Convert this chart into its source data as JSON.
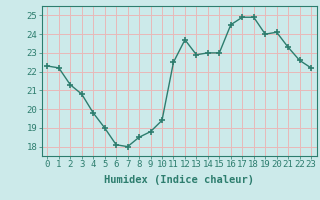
{
  "x": [
    0,
    1,
    2,
    3,
    4,
    5,
    6,
    7,
    8,
    9,
    10,
    11,
    12,
    13,
    14,
    15,
    16,
    17,
    18,
    19,
    20,
    21,
    22,
    23
  ],
  "y": [
    22.3,
    22.2,
    21.3,
    20.8,
    19.8,
    19.0,
    18.1,
    18.0,
    18.5,
    18.8,
    19.4,
    22.5,
    23.7,
    22.9,
    23.0,
    23.0,
    24.5,
    24.9,
    24.9,
    24.0,
    24.1,
    23.3,
    22.6,
    22.2
  ],
  "line_color": "#2d7d6e",
  "marker": "+",
  "marker_size": 5,
  "bg_color": "#cceaea",
  "grid_color": "#e8b8b8",
  "xlabel": "Humidex (Indice chaleur)",
  "ylim": [
    17.5,
    25.5
  ],
  "yticks": [
    18,
    19,
    20,
    21,
    22,
    23,
    24,
    25
  ],
  "xlim": [
    -0.5,
    23.5
  ],
  "xticks": [
    0,
    1,
    2,
    3,
    4,
    5,
    6,
    7,
    8,
    9,
    10,
    11,
    12,
    13,
    14,
    15,
    16,
    17,
    18,
    19,
    20,
    21,
    22,
    23
  ],
  "xlabel_fontsize": 7.5,
  "tick_fontsize": 6.5,
  "line_width": 1.0,
  "marker_linewidth": 1.2,
  "axis_label_color": "#2d7d6e",
  "tick_color": "#2d7d6e",
  "spine_color": "#2d7d6e"
}
